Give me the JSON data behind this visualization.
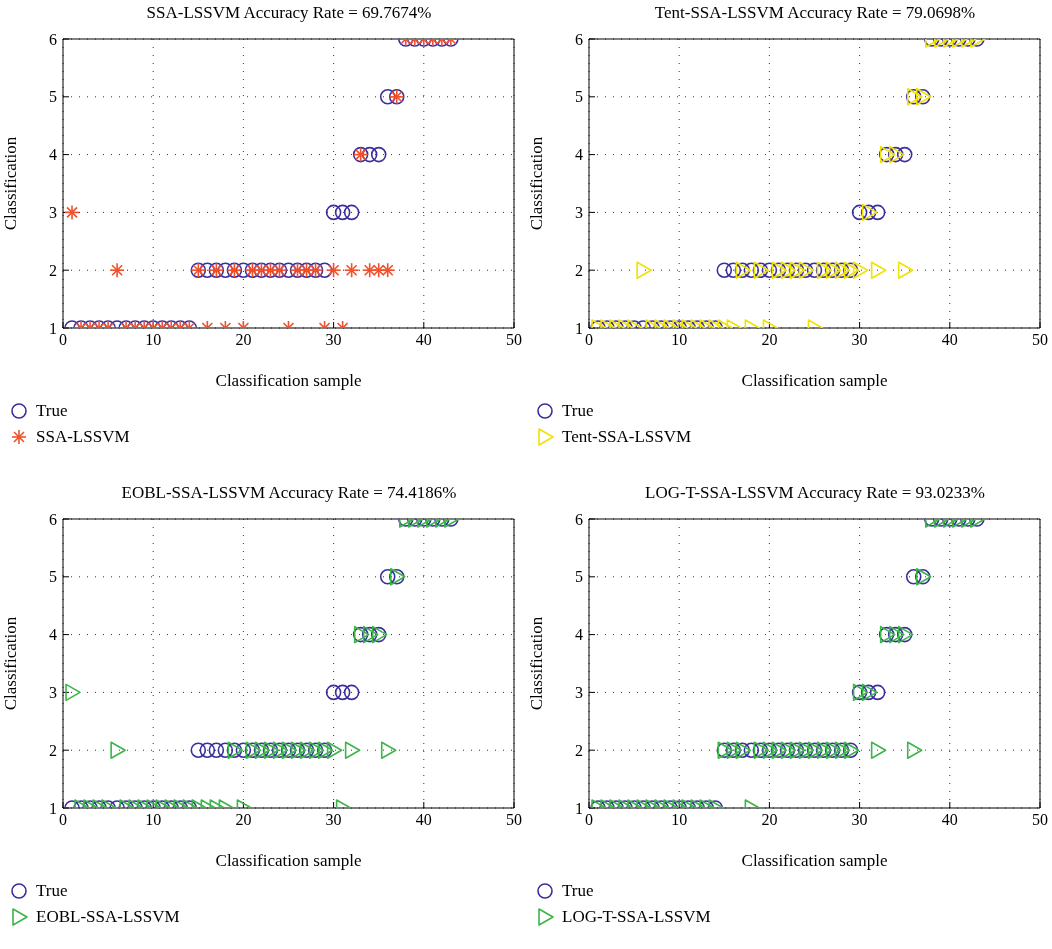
{
  "chart_data": [
    {
      "type": "scatter",
      "title": "SSA-LSSVM Accuracy Rate = 69.7674%",
      "xlabel": "Classification sample",
      "ylabel": "Classification",
      "x": [
        1,
        2,
        3,
        4,
        5,
        6,
        7,
        8,
        9,
        10,
        11,
        12,
        13,
        14,
        15,
        16,
        17,
        18,
        19,
        20,
        21,
        22,
        23,
        24,
        25,
        26,
        27,
        28,
        29,
        30,
        31,
        32,
        33,
        34,
        35,
        36,
        37,
        38,
        39,
        40,
        41,
        42,
        43
      ],
      "xlim": [
        0,
        50
      ],
      "xticks": [
        0,
        10,
        20,
        30,
        40,
        50
      ],
      "ylim": [
        1,
        6
      ],
      "yticks": [
        1,
        2,
        3,
        4,
        5,
        6
      ],
      "grid": true,
      "legend": "bottom",
      "series": [
        {
          "name": "True",
          "color": "#3a2f9c",
          "marker": "circle",
          "values": [
            1,
            1,
            1,
            1,
            1,
            1,
            1,
            1,
            1,
            1,
            1,
            1,
            1,
            1,
            2,
            2,
            2,
            2,
            2,
            2,
            2,
            2,
            2,
            2,
            2,
            2,
            2,
            2,
            2,
            3,
            3,
            3,
            4,
            4,
            4,
            5,
            5,
            6,
            6,
            6,
            6,
            6,
            6
          ]
        },
        {
          "name": "SSA-LSSVM",
          "color": "#f0502b",
          "marker": "cross",
          "values": [
            3,
            1,
            1,
            1,
            1,
            2,
            1,
            1,
            1,
            1,
            1,
            1,
            1,
            1,
            2,
            1,
            2,
            1,
            2,
            1,
            2,
            2,
            2,
            2,
            1,
            2,
            2,
            2,
            1,
            2,
            1,
            2,
            4,
            2,
            2,
            2,
            5,
            6,
            6,
            6,
            6,
            6,
            6
          ]
        }
      ]
    },
    {
      "type": "scatter",
      "title": "Tent-SSA-LSSVM Accuracy Rate = 79.0698%",
      "xlabel": "Classification sample",
      "ylabel": "Classification",
      "x": [
        1,
        2,
        3,
        4,
        5,
        6,
        7,
        8,
        9,
        10,
        11,
        12,
        13,
        14,
        15,
        16,
        17,
        18,
        19,
        20,
        21,
        22,
        23,
        24,
        25,
        26,
        27,
        28,
        29,
        30,
        31,
        32,
        33,
        34,
        35,
        36,
        37,
        38,
        39,
        40,
        41,
        42,
        43
      ],
      "xlim": [
        0,
        50
      ],
      "xticks": [
        0,
        10,
        20,
        30,
        40,
        50
      ],
      "ylim": [
        1,
        6
      ],
      "yticks": [
        1,
        2,
        3,
        4,
        5,
        6
      ],
      "grid": true,
      "legend": "bottom",
      "series": [
        {
          "name": "True",
          "color": "#3a2f9c",
          "marker": "circle",
          "values": [
            1,
            1,
            1,
            1,
            1,
            1,
            1,
            1,
            1,
            1,
            1,
            1,
            1,
            1,
            2,
            2,
            2,
            2,
            2,
            2,
            2,
            2,
            2,
            2,
            2,
            2,
            2,
            2,
            2,
            3,
            3,
            3,
            4,
            4,
            4,
            5,
            5,
            6,
            6,
            6,
            6,
            6,
            6
          ]
        },
        {
          "name": "Tent-SSA-LSSVM",
          "color": "#f2e200",
          "marker": "triangle",
          "values": [
            1,
            1,
            1,
            1,
            1,
            2,
            1,
            1,
            1,
            1,
            1,
            1,
            1,
            1,
            1,
            1,
            2,
            1,
            2,
            1,
            2,
            2,
            2,
            2,
            1,
            2,
            2,
            2,
            2,
            2,
            3,
            2,
            4,
            4,
            2,
            5,
            5,
            6,
            6,
            6,
            6,
            6,
            6
          ]
        }
      ]
    },
    {
      "type": "scatter",
      "title": "EOBL-SSA-LSSVM Accuracy Rate = 74.4186%",
      "xlabel": "Classification sample",
      "ylabel": "Classification",
      "x": [
        1,
        2,
        3,
        4,
        5,
        6,
        7,
        8,
        9,
        10,
        11,
        12,
        13,
        14,
        15,
        16,
        17,
        18,
        19,
        20,
        21,
        22,
        23,
        24,
        25,
        26,
        27,
        28,
        29,
        30,
        31,
        32,
        33,
        34,
        35,
        36,
        37,
        38,
        39,
        40,
        41,
        42,
        43
      ],
      "xlim": [
        0,
        50
      ],
      "xticks": [
        0,
        10,
        20,
        30,
        40,
        50
      ],
      "ylim": [
        1,
        6
      ],
      "yticks": [
        1,
        2,
        3,
        4,
        5,
        6
      ],
      "grid": true,
      "legend": "bottom",
      "series": [
        {
          "name": "True",
          "color": "#3a2f9c",
          "marker": "circle",
          "values": [
            1,
            1,
            1,
            1,
            1,
            1,
            1,
            1,
            1,
            1,
            1,
            1,
            1,
            1,
            2,
            2,
            2,
            2,
            2,
            2,
            2,
            2,
            2,
            2,
            2,
            2,
            2,
            2,
            2,
            3,
            3,
            3,
            4,
            4,
            4,
            5,
            5,
            6,
            6,
            6,
            6,
            6,
            6
          ]
        },
        {
          "name": "EOBL-SSA-LSSVM",
          "color": "#3cb54a",
          "marker": "triangle",
          "values": [
            3,
            1,
            1,
            1,
            1,
            2,
            1,
            1,
            1,
            1,
            1,
            1,
            1,
            1,
            1,
            1,
            1,
            1,
            2,
            1,
            2,
            2,
            2,
            2,
            2,
            2,
            2,
            2,
            2,
            2,
            1,
            2,
            4,
            4,
            4,
            2,
            5,
            6,
            6,
            6,
            6,
            6,
            6
          ]
        }
      ]
    },
    {
      "type": "scatter",
      "title": "LOG-T-SSA-LSSVM Accuracy Rate = 93.0233%",
      "xlabel": "Classification sample",
      "ylabel": "Classification",
      "x": [
        1,
        2,
        3,
        4,
        5,
        6,
        7,
        8,
        9,
        10,
        11,
        12,
        13,
        14,
        15,
        16,
        17,
        18,
        19,
        20,
        21,
        22,
        23,
        24,
        25,
        26,
        27,
        28,
        29,
        30,
        31,
        32,
        33,
        34,
        35,
        36,
        37,
        38,
        39,
        40,
        41,
        42,
        43
      ],
      "xlim": [
        0,
        50
      ],
      "xticks": [
        0,
        10,
        20,
        30,
        40,
        50
      ],
      "ylim": [
        1,
        6
      ],
      "yticks": [
        1,
        2,
        3,
        4,
        5,
        6
      ],
      "grid": true,
      "legend": "bottom",
      "series": [
        {
          "name": "True",
          "color": "#3a2f9c",
          "marker": "circle",
          "values": [
            1,
            1,
            1,
            1,
            1,
            1,
            1,
            1,
            1,
            1,
            1,
            1,
            1,
            1,
            2,
            2,
            2,
            2,
            2,
            2,
            2,
            2,
            2,
            2,
            2,
            2,
            2,
            2,
            2,
            3,
            3,
            3,
            4,
            4,
            4,
            5,
            5,
            6,
            6,
            6,
            6,
            6,
            6
          ]
        },
        {
          "name": "LOG-T-SSA-LSSVM",
          "color": "#3cb54a",
          "marker": "triangle",
          "values": [
            1,
            1,
            1,
            1,
            1,
            1,
            1,
            1,
            1,
            1,
            1,
            1,
            1,
            1,
            2,
            2,
            2,
            1,
            2,
            2,
            2,
            2,
            2,
            2,
            2,
            2,
            2,
            2,
            2,
            3,
            3,
            2,
            4,
            4,
            4,
            2,
            5,
            6,
            6,
            6,
            6,
            6,
            6
          ]
        }
      ]
    }
  ]
}
